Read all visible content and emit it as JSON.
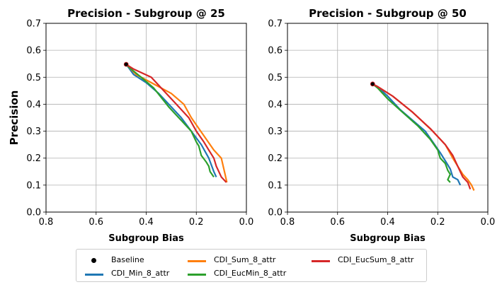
{
  "chart_data": [
    {
      "type": "line",
      "title": "Precision - Subgroup @ 25",
      "xlabel": "Subgroup Bias",
      "ylabel": "Precision",
      "xlim": [
        0.8,
        0.0
      ],
      "ylim": [
        0.0,
        0.7
      ],
      "x_reversed": true,
      "xticks": [
        "0.8",
        "0.6",
        "0.4",
        "0.2",
        "0.0"
      ],
      "yticks": [
        "0.0",
        "0.1",
        "0.2",
        "0.3",
        "0.4",
        "0.5",
        "0.6",
        "0.7"
      ],
      "grid": true,
      "baseline": {
        "name": "Baseline",
        "x": 0.48,
        "y": 0.548
      },
      "series": [
        {
          "name": "CDI_Min_8_attr",
          "color": "#1f77b4",
          "x": [
            0.48,
            0.45,
            0.4,
            0.35,
            0.3,
            0.26,
            0.22,
            0.18,
            0.15,
            0.13,
            0.12
          ],
          "y": [
            0.548,
            0.51,
            0.48,
            0.44,
            0.39,
            0.35,
            0.3,
            0.25,
            0.2,
            0.15,
            0.13
          ]
        },
        {
          "name": "CDI_Sum_8_attr",
          "color": "#ff7f0e",
          "x": [
            0.48,
            0.44,
            0.38,
            0.3,
            0.25,
            0.22,
            0.19,
            0.16,
            0.13,
            0.1,
            0.085,
            0.078
          ],
          "y": [
            0.548,
            0.51,
            0.48,
            0.44,
            0.4,
            0.35,
            0.31,
            0.27,
            0.23,
            0.2,
            0.14,
            0.11
          ]
        },
        {
          "name": "CDI_EucMin_8_attr",
          "color": "#2ca02c",
          "x": [
            0.48,
            0.46,
            0.42,
            0.37,
            0.31,
            0.26,
            0.22,
            0.2,
            0.19,
            0.18,
            0.16,
            0.15,
            0.145,
            0.13
          ],
          "y": [
            0.548,
            0.53,
            0.5,
            0.46,
            0.39,
            0.34,
            0.3,
            0.26,
            0.245,
            0.21,
            0.185,
            0.17,
            0.15,
            0.13
          ]
        },
        {
          "name": "CDI_EucSum_8_attr",
          "color": "#d62728",
          "x": [
            0.48,
            0.45,
            0.38,
            0.33,
            0.28,
            0.23,
            0.2,
            0.17,
            0.15,
            0.13,
            0.12,
            0.11,
            0.1,
            0.09,
            0.08
          ],
          "y": [
            0.548,
            0.53,
            0.5,
            0.45,
            0.4,
            0.35,
            0.3,
            0.26,
            0.23,
            0.2,
            0.17,
            0.15,
            0.13,
            0.12,
            0.11
          ]
        }
      ]
    },
    {
      "type": "line",
      "title": "Precision - Subgroup @ 50",
      "xlabel": "Subgroup Bias",
      "ylabel": "",
      "xlim": [
        0.8,
        0.0
      ],
      "ylim": [
        0.0,
        0.7
      ],
      "x_reversed": true,
      "xticks": [
        "0.8",
        "0.6",
        "0.4",
        "0.2",
        "0.0"
      ],
      "yticks": [
        "0.0",
        "0.1",
        "0.2",
        "0.3",
        "0.4",
        "0.5",
        "0.6",
        "0.7"
      ],
      "grid": true,
      "baseline": {
        "name": "Baseline",
        "x": 0.46,
        "y": 0.475
      },
      "series": [
        {
          "name": "CDI_Min_8_attr",
          "color": "#1f77b4",
          "x": [
            0.46,
            0.44,
            0.4,
            0.35,
            0.3,
            0.25,
            0.22,
            0.19,
            0.17,
            0.15,
            0.14,
            0.12,
            0.11
          ],
          "y": [
            0.475,
            0.465,
            0.43,
            0.38,
            0.34,
            0.3,
            0.26,
            0.22,
            0.19,
            0.16,
            0.13,
            0.12,
            0.1
          ]
        },
        {
          "name": "CDI_Sum_8_attr",
          "color": "#ff7f0e",
          "x": [
            0.46,
            0.44,
            0.38,
            0.3,
            0.22,
            0.17,
            0.14,
            0.12,
            0.1,
            0.08,
            0.065,
            0.055
          ],
          "y": [
            0.475,
            0.465,
            0.43,
            0.37,
            0.3,
            0.25,
            0.2,
            0.17,
            0.14,
            0.12,
            0.1,
            0.08
          ]
        },
        {
          "name": "CDI_EucMin_8_attr",
          "color": "#2ca02c",
          "x": [
            0.46,
            0.44,
            0.4,
            0.34,
            0.28,
            0.23,
            0.2,
            0.19,
            0.17,
            0.16,
            0.15,
            0.16,
            0.15
          ],
          "y": [
            0.475,
            0.46,
            0.42,
            0.37,
            0.32,
            0.27,
            0.23,
            0.2,
            0.18,
            0.155,
            0.14,
            0.12,
            0.11
          ]
        },
        {
          "name": "CDI_EucSum_8_attr",
          "color": "#d62728",
          "x": [
            0.46,
            0.44,
            0.38,
            0.3,
            0.23,
            0.17,
            0.14,
            0.12,
            0.1,
            0.08,
            0.07
          ],
          "y": [
            0.475,
            0.465,
            0.43,
            0.37,
            0.31,
            0.25,
            0.21,
            0.17,
            0.13,
            0.11,
            0.085
          ]
        }
      ]
    }
  ],
  "legend": {
    "items": [
      {
        "name": "Baseline",
        "kind": "dot",
        "color": "#000000"
      },
      {
        "name": "CDI_Min_8_attr",
        "kind": "line",
        "color": "#1f77b4"
      },
      {
        "name": "CDI_Sum_8_attr",
        "kind": "line",
        "color": "#ff7f0e"
      },
      {
        "name": "CDI_EucMin_8_attr",
        "kind": "line",
        "color": "#2ca02c"
      },
      {
        "name": "CDI_EucSum_8_attr",
        "kind": "line",
        "color": "#d62728"
      }
    ]
  }
}
